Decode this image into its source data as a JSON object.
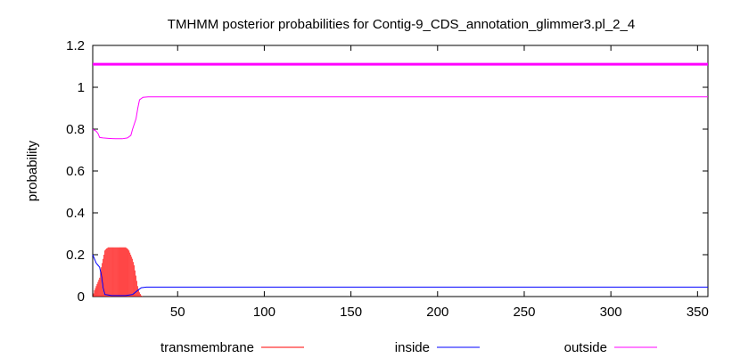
{
  "chart_data": {
    "type": "line",
    "title": "TMHMM posterior probabilities for Contig-9_CDS_annotation_glimmer3.pl_2_4",
    "xlabel": "",
    "ylabel": "probability",
    "xlim": [
      1,
      356
    ],
    "ylim": [
      0,
      1.2
    ],
    "x_ticks": [
      50,
      100,
      150,
      200,
      250,
      300,
      350
    ],
    "y_ticks": [
      0,
      0.2,
      0.4,
      0.6,
      0.8,
      1,
      1.2
    ],
    "y_tick_labels": [
      "0",
      "0.2",
      "0.4",
      "0.6",
      "0.8",
      "1",
      "1.2"
    ],
    "grid": false,
    "legend_position": "bottom",
    "series": [
      {
        "name": "transmembrane",
        "style": "impulses",
        "color": "#ff0000",
        "points": [
          [
            1,
            0.0
          ],
          [
            2,
            0.03
          ],
          [
            3,
            0.05
          ],
          [
            4,
            0.07
          ],
          [
            5,
            0.09
          ],
          [
            6,
            0.14
          ],
          [
            7,
            0.18
          ],
          [
            8,
            0.22
          ],
          [
            9,
            0.23
          ],
          [
            10,
            0.235
          ],
          [
            12,
            0.235
          ],
          [
            14,
            0.235
          ],
          [
            16,
            0.235
          ],
          [
            18,
            0.235
          ],
          [
            20,
            0.235
          ],
          [
            21,
            0.23
          ],
          [
            22,
            0.22
          ],
          [
            23,
            0.2
          ],
          [
            24,
            0.18
          ],
          [
            25,
            0.15
          ],
          [
            26,
            0.1
          ],
          [
            27,
            0.05
          ],
          [
            28,
            0.02
          ],
          [
            29,
            0.005
          ],
          [
            30,
            0.0
          ],
          [
            356,
            0.0
          ]
        ]
      },
      {
        "name": "inside",
        "style": "line",
        "color": "#0000ff",
        "points": [
          [
            1,
            0.2
          ],
          [
            2,
            0.18
          ],
          [
            3,
            0.16
          ],
          [
            4,
            0.15
          ],
          [
            5,
            0.14
          ],
          [
            6,
            0.1
          ],
          [
            7,
            0.04
          ],
          [
            8,
            0.01
          ],
          [
            12,
            0.005
          ],
          [
            20,
            0.005
          ],
          [
            24,
            0.01
          ],
          [
            27,
            0.03
          ],
          [
            29,
            0.042
          ],
          [
            32,
            0.045
          ],
          [
            356,
            0.045
          ]
        ]
      },
      {
        "name": "outside",
        "style": "line",
        "color": "#ff00ff",
        "points": [
          [
            1,
            0.8
          ],
          [
            2,
            0.795
          ],
          [
            3,
            0.79
          ],
          [
            4,
            0.78
          ],
          [
            5,
            0.76
          ],
          [
            7,
            0.758
          ],
          [
            10,
            0.756
          ],
          [
            14,
            0.754
          ],
          [
            18,
            0.754
          ],
          [
            21,
            0.758
          ],
          [
            23,
            0.77
          ],
          [
            24,
            0.8
          ],
          [
            26,
            0.85
          ],
          [
            27,
            0.9
          ],
          [
            28,
            0.94
          ],
          [
            30,
            0.952
          ],
          [
            33,
            0.954
          ],
          [
            356,
            0.954
          ]
        ]
      },
      {
        "name": "",
        "style": "line",
        "color": "#ff00ff",
        "thick": true,
        "points": [
          [
            1,
            1.11
          ],
          [
            356,
            1.11
          ]
        ]
      }
    ]
  }
}
